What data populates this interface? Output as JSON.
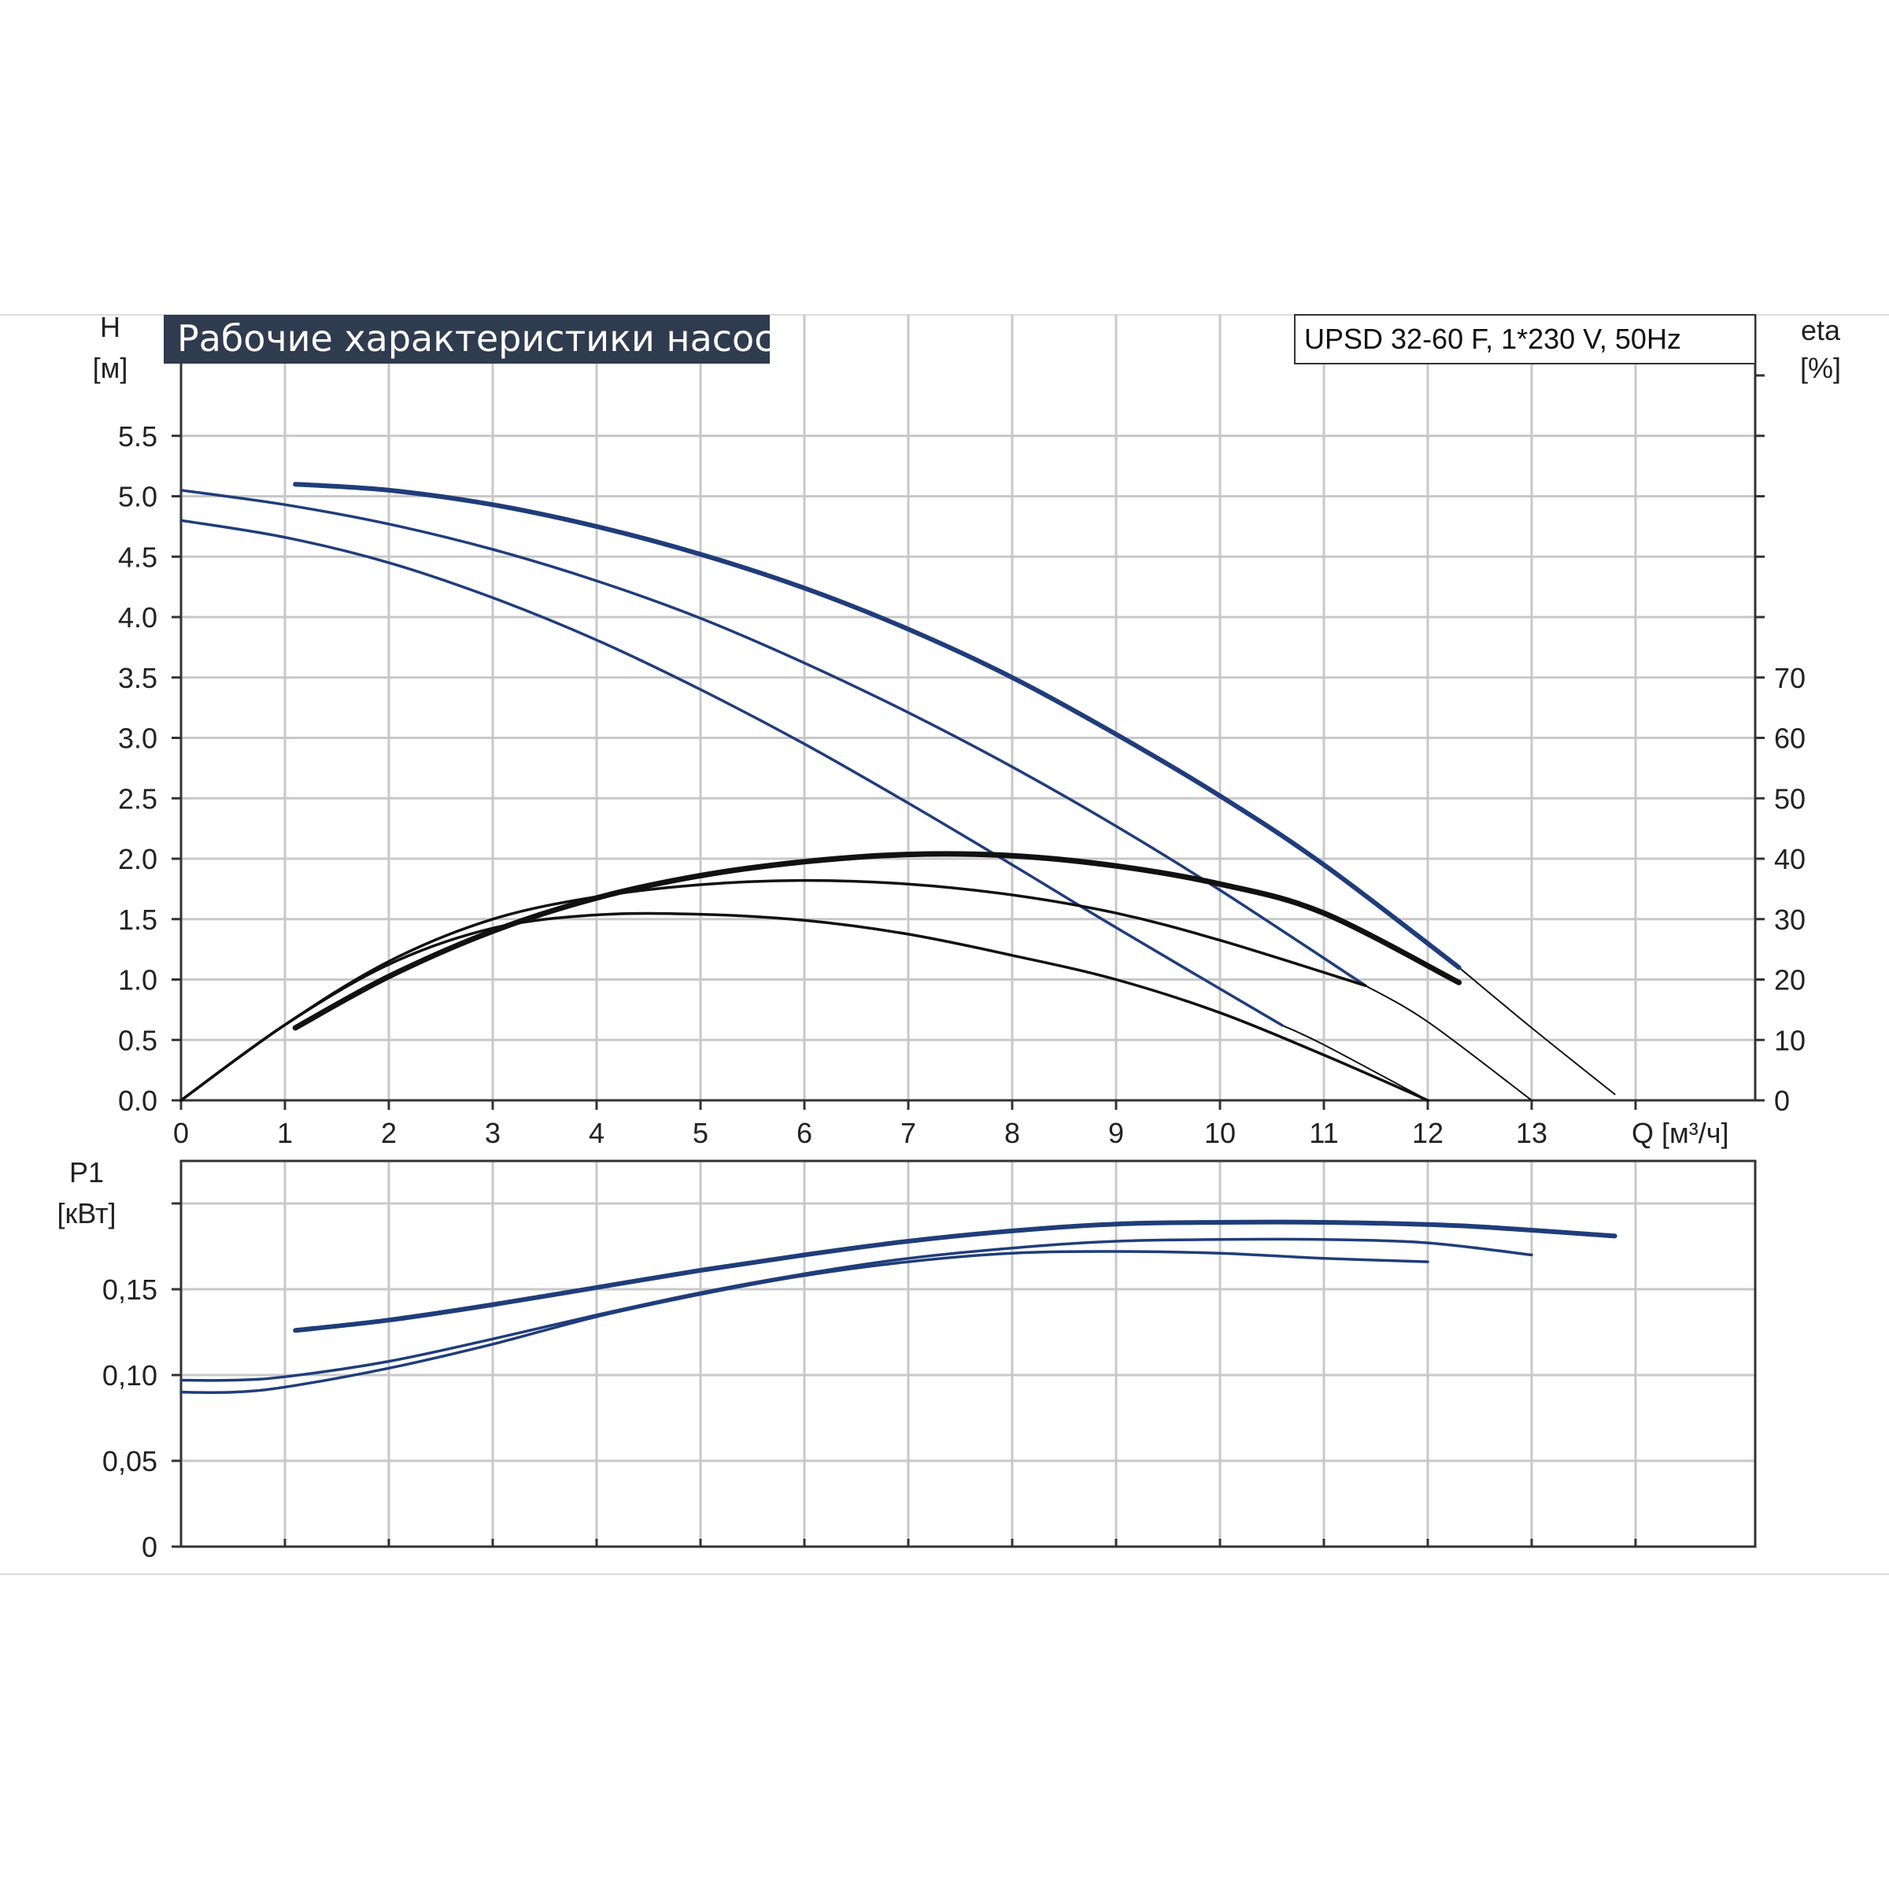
{
  "colors": {
    "head_curve": "#1f3d7a",
    "efficiency_curve": "#111111",
    "power_curve": "#1f3d7a",
    "system_curve": "#111111",
    "title_box": "#2f3b4e",
    "grid": "#c8c8c8"
  },
  "chart_data": [
    {
      "type": "line",
      "title": "Рабочие характеристики насоса",
      "subtitle": "UPSD 32-60 F, 1*230 V, 50Hz",
      "xlabel": "Q [м³/ч]",
      "ylabel": [
        "H",
        "[м]"
      ],
      "y2label": [
        "eta",
        "[%]"
      ],
      "x_ticks": [
        "0",
        "1",
        "2",
        "3",
        "4",
        "5",
        "6",
        "7",
        "8",
        "9",
        "10",
        "11",
        "12",
        "13"
      ],
      "y_ticks": [
        "0.0",
        "0.5",
        "1.0",
        "1.5",
        "2.0",
        "2.5",
        "3.0",
        "3.5",
        "4.0",
        "4.5",
        "5.0",
        "5.5"
      ],
      "y2_ticks": [
        "0",
        "10",
        "20",
        "30",
        "40",
        "50",
        "60",
        "70"
      ],
      "xlim": [
        0,
        15
      ],
      "ylim": [
        0,
        6
      ],
      "y2lim": [
        0,
        120
      ],
      "grid": true,
      "head_series": [
        {
          "x": [
            1.1,
            2,
            3,
            4,
            5,
            6,
            7,
            8,
            9,
            10,
            11,
            12.3
          ],
          "y": [
            5.1,
            5.05,
            4.93,
            4.75,
            4.52,
            4.24,
            3.9,
            3.5,
            3.03,
            2.52,
            1.95,
            1.1
          ]
        },
        {
          "x": [
            0,
            1,
            2,
            3,
            4,
            5,
            6,
            7,
            8,
            9,
            10,
            11.4
          ],
          "y": [
            5.05,
            4.93,
            4.77,
            4.56,
            4.3,
            3.99,
            3.62,
            3.21,
            2.76,
            2.27,
            1.74,
            0.95
          ]
        },
        {
          "x": [
            0,
            1,
            2,
            3,
            4,
            5,
            6,
            7,
            8,
            9,
            10.6
          ],
          "y": [
            4.8,
            4.66,
            4.45,
            4.16,
            3.81,
            3.4,
            2.95,
            2.46,
            1.95,
            1.43,
            0.62
          ]
        }
      ],
      "system_curves": [
        {
          "x": [
            12.3,
            13,
            13.8
          ],
          "y": [
            1.1,
            0.6,
            0.05
          ]
        },
        {
          "x": [
            11.4,
            12,
            13
          ],
          "y": [
            0.95,
            0.65,
            0.0
          ]
        },
        {
          "x": [
            10.6,
            11,
            12
          ],
          "y": [
            0.62,
            0.46,
            0.0
          ]
        }
      ],
      "efficiency_series": [
        {
          "x": [
            1.1,
            2,
            3,
            4,
            5,
            6,
            7,
            8,
            9,
            10,
            11,
            12.3
          ],
          "y": [
            12,
            20.5,
            28,
            33.5,
            37.2,
            39.5,
            40.7,
            40.5,
            38.8,
            35.8,
            31,
            19.5
          ]
        },
        {
          "x": [
            0,
            1,
            2,
            3,
            4,
            5,
            6,
            7,
            8,
            9,
            10,
            11.4
          ],
          "y": [
            0,
            12.5,
            23,
            30,
            33.7,
            35.7,
            36.4,
            35.8,
            34,
            31,
            26.5,
            19
          ]
        },
        {
          "x": [
            0,
            1,
            2,
            3,
            4,
            5,
            6,
            7,
            8,
            9,
            10,
            11,
            12
          ],
          "y": [
            0,
            12.5,
            22.5,
            28.5,
            30.7,
            30.8,
            29.8,
            27.5,
            24,
            20,
            14.5,
            7.5,
            0
          ]
        }
      ]
    },
    {
      "type": "line",
      "ylabel": [
        "P1",
        "[кВт]"
      ],
      "y_ticks": [
        "0",
        "0,05",
        "0,10",
        "0,15"
      ],
      "xlim": [
        0,
        15
      ],
      "ylim": [
        0,
        0.2
      ],
      "grid": true,
      "power_series": [
        {
          "x": [
            1.1,
            2,
            3,
            4,
            5,
            6,
            7,
            8,
            9,
            10,
            11,
            12.3,
            13.8
          ],
          "y": [
            0.126,
            0.132,
            0.141,
            0.151,
            0.161,
            0.17,
            0.178,
            0.184,
            0.188,
            0.189,
            0.189,
            0.187,
            0.181
          ]
        },
        {
          "x": [
            0,
            0.5,
            1,
            2,
            3,
            4,
            5,
            6,
            7,
            8,
            9,
            10,
            11,
            12,
            13
          ],
          "y": [
            0.097,
            0.097,
            0.099,
            0.108,
            0.121,
            0.135,
            0.148,
            0.159,
            0.168,
            0.174,
            0.178,
            0.179,
            0.179,
            0.177,
            0.17
          ]
        },
        {
          "x": [
            0,
            0.5,
            1,
            2,
            3,
            4,
            5,
            6,
            7,
            8,
            9,
            10,
            11,
            12
          ],
          "y": [
            0.09,
            0.09,
            0.093,
            0.104,
            0.118,
            0.134,
            0.147,
            0.158,
            0.166,
            0.171,
            0.172,
            0.171,
            0.168,
            0.166
          ]
        }
      ]
    }
  ]
}
